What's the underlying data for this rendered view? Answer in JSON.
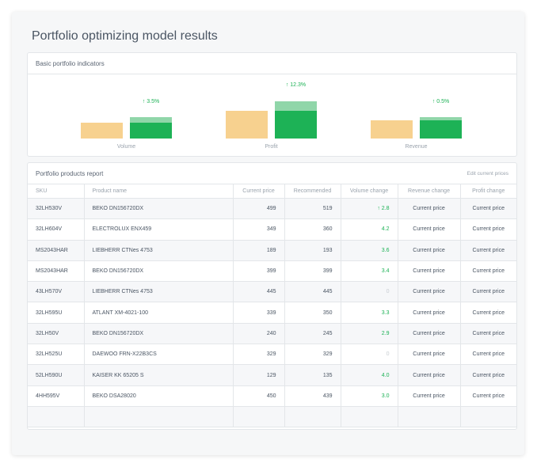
{
  "page_title": "Portfolio optimizing model results",
  "indicators": {
    "title": "Basic portfolio indicators",
    "groups": [
      {
        "label": "Volume",
        "change": "↑ 3.5%"
      },
      {
        "label": "Profit",
        "change": "↑ 12.3%"
      },
      {
        "label": "Revenue",
        "change": "↑ 0.5%"
      }
    ]
  },
  "report": {
    "title": "Portfolio products report",
    "edit_link": "Edit current prices",
    "columns": [
      "SKU",
      "Product name",
      "Current price",
      "Recommended",
      "Volume change",
      "Revenue change",
      "Profit change"
    ],
    "rows": [
      {
        "sku": "32LH530V",
        "name": "BEKO DN156720DX",
        "current": "499",
        "rec": "519",
        "vol": "↑ 2.8",
        "rev": "Current price",
        "profit": "Current price"
      },
      {
        "sku": "32LH604V",
        "name": "ELECTROLUX ENX459",
        "current": "349",
        "rec": "360",
        "vol": "4.2",
        "rev": "Current price",
        "profit": "Current price"
      },
      {
        "sku": "MS2043HAR",
        "name": "LIEBHERR CTNes 4753",
        "current": "189",
        "rec": "193",
        "vol": "3.6",
        "rev": "Current price",
        "profit": "Current price"
      },
      {
        "sku": "MS2043HAR",
        "name": "BEKO DN156720DX",
        "current": "399",
        "rec": "399",
        "vol": "3.4",
        "rev": "Current price",
        "profit": "Current price"
      },
      {
        "sku": "43LH570V",
        "name": "LIEBHERR CTNes 4753",
        "current": "445",
        "rec": "445",
        "vol": "0",
        "rev": "Current price",
        "profit": "Current price"
      },
      {
        "sku": "32LH595U",
        "name": "ATLANT XM-4021-100",
        "current": "339",
        "rec": "350",
        "vol": "3.3",
        "rev": "Current price",
        "profit": "Current price"
      },
      {
        "sku": "32LH50V",
        "name": "BEKO DN156720DX",
        "current": "240",
        "rec": "245",
        "vol": "2.9",
        "rev": "Current price",
        "profit": "Current price"
      },
      {
        "sku": "32LH525U",
        "name": "DAEWOO FRN-X22B3CS",
        "current": "329",
        "rec": "329",
        "vol": "0",
        "rev": "Current price",
        "profit": "Current price"
      },
      {
        "sku": "52LH590U",
        "name": "KAISER KK 65205 S",
        "current": "129",
        "rec": "135",
        "vol": "4.0",
        "rev": "Current price",
        "profit": "Current price"
      },
      {
        "sku": "4HH595V",
        "name": "BEKO DSA28020",
        "current": "450",
        "rec": "439",
        "vol": "3.0",
        "rev": "Current price",
        "profit": "Current price"
      }
    ]
  },
  "colors": {
    "baseline_bar": "#f7d18f",
    "optimized_bar": "#1db256",
    "delta_bar": "#90d6a9",
    "positive_text": "#1db256"
  }
}
